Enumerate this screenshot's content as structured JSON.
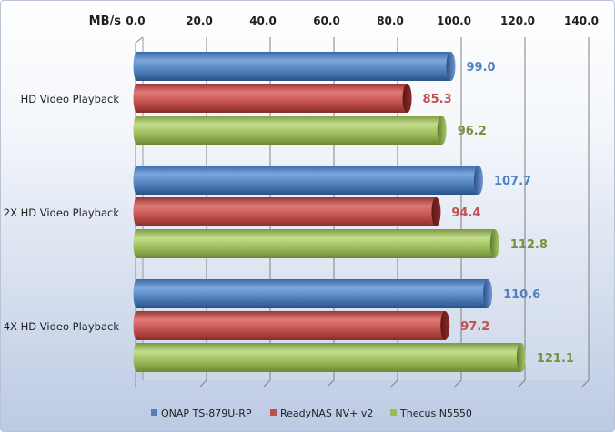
{
  "chart_data": {
    "type": "bar",
    "orientation": "horizontal",
    "title": "",
    "xlabel": "MB/s",
    "ylabel": "",
    "xlim": [
      0,
      140
    ],
    "xticks": [
      "0.0",
      "20.0",
      "40.0",
      "60.0",
      "80.0",
      "100.0",
      "120.0",
      "140.0"
    ],
    "grid": true,
    "legend_position": "bottom",
    "categories": [
      "HD Video Playback",
      "2X HD Video Playback",
      "4X HD Video Playback"
    ],
    "series": [
      {
        "name": "QNAP TS-879U-RP",
        "color": "#4f81bd",
        "values": [
          99.0,
          107.7,
          110.6
        ],
        "labels": [
          "99.0",
          "107.7",
          "110.6"
        ]
      },
      {
        "name": "ReadyNAS NV+ v2",
        "color": "#c0504d",
        "values": [
          85.3,
          94.4,
          97.2
        ],
        "labels": [
          "85.3",
          "94.4",
          "97.2"
        ]
      },
      {
        "name": "Thecus N5550",
        "color": "#9bbb59",
        "values": [
          96.2,
          112.8,
          121.1
        ],
        "labels": [
          "96.2",
          "112.8",
          "121.1"
        ]
      }
    ]
  }
}
